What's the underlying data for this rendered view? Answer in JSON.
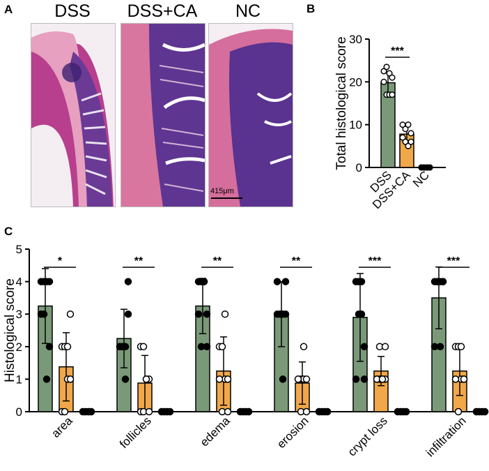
{
  "panel_a": {
    "letter": "A",
    "images": [
      {
        "label": "DSS"
      },
      {
        "label": "DSS+CA"
      },
      {
        "label": "NC"
      }
    ],
    "scale_bar": "415μm"
  },
  "colors": {
    "dss": "#7a9978",
    "dss_ca": "#f1a84a",
    "nc": "#000000"
  },
  "chart_data": [
    {
      "panel": "B",
      "type": "bar",
      "ylabel": "Total histological score",
      "xlabel": "",
      "ylim": [
        0,
        30
      ],
      "yticks": [
        0,
        10,
        20,
        30
      ],
      "categories": [
        "DSS",
        "DSS+CA",
        "NC"
      ],
      "values": [
        19.8,
        7.8,
        0
      ],
      "errors": [
        2.4,
        2.2,
        0
      ],
      "points": [
        [
          22.5,
          23.5,
          22,
          21,
          20,
          17,
          17,
          17
        ],
        [
          10,
          9,
          10,
          8,
          7,
          6,
          5,
          6
        ],
        [
          0,
          0,
          0,
          0,
          0,
          0,
          0,
          0
        ]
      ],
      "significance": [
        {
          "between": [
            0,
            1
          ],
          "label": "***"
        }
      ]
    },
    {
      "panel": "C",
      "type": "bar",
      "ylabel": "Histological score",
      "xlabel": "",
      "ylim": [
        0,
        5
      ],
      "yticks": [
        0,
        1,
        2,
        3,
        4,
        5
      ],
      "categories": [
        "area",
        "follicles",
        "edema",
        "erosion",
        "crypt loss",
        "infiltration"
      ],
      "series": [
        {
          "name": "DSS",
          "values": [
            3.25,
            2.25,
            3.25,
            3.0,
            2.9,
            3.5
          ],
          "errors": [
            1.15,
            0.9,
            0.85,
            1.0,
            1.35,
            0.95
          ],
          "points": [
            [
              4,
              4,
              4,
              4,
              3,
              3,
              1,
              2
            ],
            [
              2,
              2,
              2,
              3,
              2,
              2,
              1,
              4
            ],
            [
              4,
              4,
              4,
              3,
              3,
              2,
              4,
              2
            ],
            [
              3,
              3,
              3,
              3,
              4,
              3,
              1,
              4
            ],
            [
              4,
              4,
              4,
              2,
              1,
              3,
              3,
              1
            ],
            [
              4,
              4,
              4,
              4,
              2,
              4,
              2,
              4
            ]
          ]
        },
        {
          "name": "DSS+CA",
          "values": [
            1.38,
            0.88,
            1.25,
            0.88,
            1.25,
            1.25
          ],
          "errors": [
            1.05,
            0.85,
            1.05,
            0.65,
            0.45,
            0.75
          ],
          "points": [
            [
              2,
              2,
              1,
              1,
              0,
              0,
              2,
              3
            ],
            [
              2,
              2,
              1,
              1,
              0,
              0,
              1,
              0
            ],
            [
              2,
              2,
              1,
              1,
              1,
              0,
              3,
              0
            ],
            [
              1,
              1,
              1,
              1,
              1,
              0,
              2,
              0
            ],
            [
              1,
              1,
              1,
              1,
              1,
              2,
              1,
              2
            ],
            [
              2,
              2,
              1,
              1,
              1,
              0,
              2,
              1
            ]
          ]
        },
        {
          "name": "NC",
          "values": [
            0,
            0,
            0,
            0,
            0,
            0
          ],
          "errors": [
            0,
            0,
            0,
            0,
            0,
            0
          ],
          "points": [
            [
              0,
              0,
              0,
              0,
              0,
              0,
              0,
              0
            ],
            [
              0,
              0,
              0,
              0,
              0,
              0,
              0,
              0
            ],
            [
              0,
              0,
              0,
              0,
              0,
              0,
              0,
              0
            ],
            [
              0,
              0,
              0,
              0,
              0,
              0,
              0,
              0
            ],
            [
              0,
              0,
              0,
              0,
              0,
              0,
              0,
              0
            ],
            [
              0,
              0,
              0,
              0,
              0,
              0,
              0,
              0
            ]
          ]
        }
      ],
      "significance": [
        {
          "group": 0,
          "label": "*"
        },
        {
          "group": 1,
          "label": "**"
        },
        {
          "group": 2,
          "label": "**"
        },
        {
          "group": 3,
          "label": "**"
        },
        {
          "group": 4,
          "label": "***"
        },
        {
          "group": 5,
          "label": "***"
        }
      ]
    }
  ]
}
